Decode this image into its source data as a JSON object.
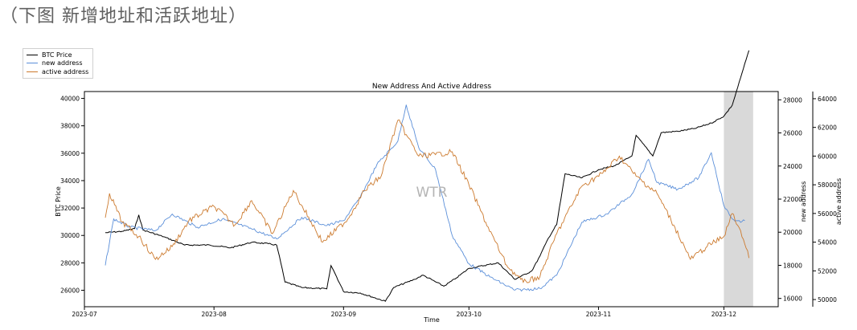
{
  "header": {
    "caption": "（下图 新增地址和活跃地址）"
  },
  "legend": {
    "items": [
      {
        "label": "BTC Price",
        "color": "#000000"
      },
      {
        "label": "new address",
        "color": "#5b8fd9"
      },
      {
        "label": "active address",
        "color": "#cc7a2e"
      }
    ]
  },
  "chart_data": {
    "type": "line",
    "title": "New Address And Active Address",
    "xlabel": "Time",
    "ylabel_left": "BTC Price",
    "ylabel_right_1": "new address",
    "ylabel_right_2": "active address",
    "watermark": "WTR",
    "x_range": [
      "2023-07-01",
      "2023-12-14"
    ],
    "x_ticks": [
      "2023-07",
      "2023-08",
      "2023-09",
      "2023-10",
      "2023-11",
      "2023-12"
    ],
    "y_left": {
      "range": [
        24800,
        40500
      ],
      "ticks": [
        26000,
        28000,
        30000,
        32000,
        34000,
        36000,
        38000,
        40000
      ]
    },
    "y_right_1": {
      "range": [
        15500,
        28500
      ],
      "ticks": [
        16000,
        18000,
        20000,
        22000,
        24000,
        26000,
        28000
      ]
    },
    "y_right_2": {
      "range": [
        49500,
        64500
      ],
      "ticks": [
        50000,
        52000,
        54000,
        56000,
        58000,
        60000,
        62000,
        64000
      ]
    },
    "shaded_region": [
      "2023-12-01",
      "2023-12-08"
    ],
    "series": [
      {
        "name": "BTC Price",
        "axis": "left",
        "color": "#000000",
        "points": [
          [
            "2023-07-06",
            30200
          ],
          [
            "2023-07-10",
            30300
          ],
          [
            "2023-07-13",
            30500
          ],
          [
            "2023-07-14",
            31500
          ],
          [
            "2023-07-15",
            30400
          ],
          [
            "2023-07-20",
            29900
          ],
          [
            "2023-07-25",
            29300
          ],
          [
            "2023-07-31",
            29300
          ],
          [
            "2023-08-05",
            29100
          ],
          [
            "2023-08-10",
            29500
          ],
          [
            "2023-08-14",
            29400
          ],
          [
            "2023-08-16",
            29300
          ],
          [
            "2023-08-17",
            28000
          ],
          [
            "2023-08-18",
            26600
          ],
          [
            "2023-08-22",
            26200
          ],
          [
            "2023-08-28",
            26100
          ],
          [
            "2023-08-29",
            27800
          ],
          [
            "2023-08-30",
            27200
          ],
          [
            "2023-09-01",
            25900
          ],
          [
            "2023-09-05",
            25800
          ],
          [
            "2023-09-11",
            25200
          ],
          [
            "2023-09-13",
            26200
          ],
          [
            "2023-09-18",
            26800
          ],
          [
            "2023-09-20",
            27100
          ],
          [
            "2023-09-25",
            26300
          ],
          [
            "2023-09-28",
            26900
          ],
          [
            "2023-10-01",
            27600
          ],
          [
            "2023-10-08",
            28000
          ],
          [
            "2023-10-12",
            26800
          ],
          [
            "2023-10-16",
            27400
          ],
          [
            "2023-10-18",
            28500
          ],
          [
            "2023-10-20",
            29800
          ],
          [
            "2023-10-22",
            30800
          ],
          [
            "2023-10-24",
            34500
          ],
          [
            "2023-10-28",
            34200
          ],
          [
            "2023-11-01",
            34800
          ],
          [
            "2023-11-05",
            35100
          ],
          [
            "2023-11-09",
            35800
          ],
          [
            "2023-11-10",
            37300
          ],
          [
            "2023-11-14",
            35800
          ],
          [
            "2023-11-16",
            37500
          ],
          [
            "2023-11-20",
            37600
          ],
          [
            "2023-11-24",
            37800
          ],
          [
            "2023-11-28",
            38200
          ],
          [
            "2023-12-01",
            38700
          ],
          [
            "2023-12-03",
            39500
          ],
          [
            "2023-12-05",
            41500
          ],
          [
            "2023-12-07",
            43500
          ]
        ]
      },
      {
        "name": "new address",
        "axis": "right_1",
        "color": "#5b8fd9",
        "points": [
          [
            "2023-07-06",
            18000
          ],
          [
            "2023-07-08",
            20800
          ],
          [
            "2023-07-12",
            20300
          ],
          [
            "2023-07-18",
            20100
          ],
          [
            "2023-07-22",
            21100
          ],
          [
            "2023-07-28",
            20300
          ],
          [
            "2023-08-03",
            20800
          ],
          [
            "2023-08-10",
            20200
          ],
          [
            "2023-08-16",
            19600
          ],
          [
            "2023-08-22",
            20900
          ],
          [
            "2023-08-28",
            20400
          ],
          [
            "2023-09-01",
            20700
          ],
          [
            "2023-09-05",
            22100
          ],
          [
            "2023-09-09",
            24100
          ],
          [
            "2023-09-14",
            25500
          ],
          [
            "2023-09-16",
            27700
          ],
          [
            "2023-09-19",
            25100
          ],
          [
            "2023-09-23",
            23800
          ],
          [
            "2023-09-27",
            19800
          ],
          [
            "2023-10-01",
            18100
          ],
          [
            "2023-10-06",
            17300
          ],
          [
            "2023-10-12",
            16500
          ],
          [
            "2023-10-18",
            16600
          ],
          [
            "2023-10-22",
            17400
          ],
          [
            "2023-10-28",
            20600
          ],
          [
            "2023-11-03",
            21100
          ],
          [
            "2023-11-09",
            22300
          ],
          [
            "2023-11-13",
            24400
          ],
          [
            "2023-11-15",
            23000
          ],
          [
            "2023-11-20",
            22600
          ],
          [
            "2023-11-25",
            23300
          ],
          [
            "2023-11-28",
            24800
          ],
          [
            "2023-12-01",
            21600
          ],
          [
            "2023-12-03",
            20800
          ],
          [
            "2023-12-05",
            20600
          ],
          [
            "2023-12-06",
            20700
          ]
        ]
      },
      {
        "name": "active address",
        "axis": "right_2",
        "color": "#cc7a2e",
        "points": [
          [
            "2023-07-06",
            55700
          ],
          [
            "2023-07-07",
            57400
          ],
          [
            "2023-07-10",
            55400
          ],
          [
            "2023-07-14",
            54400
          ],
          [
            "2023-07-18",
            52800
          ],
          [
            "2023-07-22",
            53700
          ],
          [
            "2023-07-26",
            55500
          ],
          [
            "2023-08-01",
            56500
          ],
          [
            "2023-08-06",
            55200
          ],
          [
            "2023-08-10",
            56900
          ],
          [
            "2023-08-15",
            54600
          ],
          [
            "2023-08-20",
            57600
          ],
          [
            "2023-08-27",
            54000
          ],
          [
            "2023-09-02",
            55600
          ],
          [
            "2023-09-06",
            57600
          ],
          [
            "2023-09-10",
            58600
          ],
          [
            "2023-09-14",
            62500
          ],
          [
            "2023-09-16",
            61500
          ],
          [
            "2023-09-19",
            60000
          ],
          [
            "2023-09-23",
            60100
          ],
          [
            "2023-09-27",
            60300
          ],
          [
            "2023-10-01",
            58000
          ],
          [
            "2023-10-05",
            55400
          ],
          [
            "2023-10-10",
            52400
          ],
          [
            "2023-10-14",
            51200
          ],
          [
            "2023-10-18",
            51600
          ],
          [
            "2023-10-22",
            54600
          ],
          [
            "2023-10-28",
            57900
          ],
          [
            "2023-11-02",
            58800
          ],
          [
            "2023-11-06",
            60000
          ],
          [
            "2023-11-10",
            58600
          ],
          [
            "2023-11-15",
            57400
          ],
          [
            "2023-11-19",
            55200
          ],
          [
            "2023-11-23",
            52800
          ],
          [
            "2023-11-27",
            53700
          ],
          [
            "2023-12-01",
            54400
          ],
          [
            "2023-12-03",
            56000
          ],
          [
            "2023-12-05",
            54800
          ],
          [
            "2023-12-07",
            52900
          ]
        ]
      }
    ]
  }
}
